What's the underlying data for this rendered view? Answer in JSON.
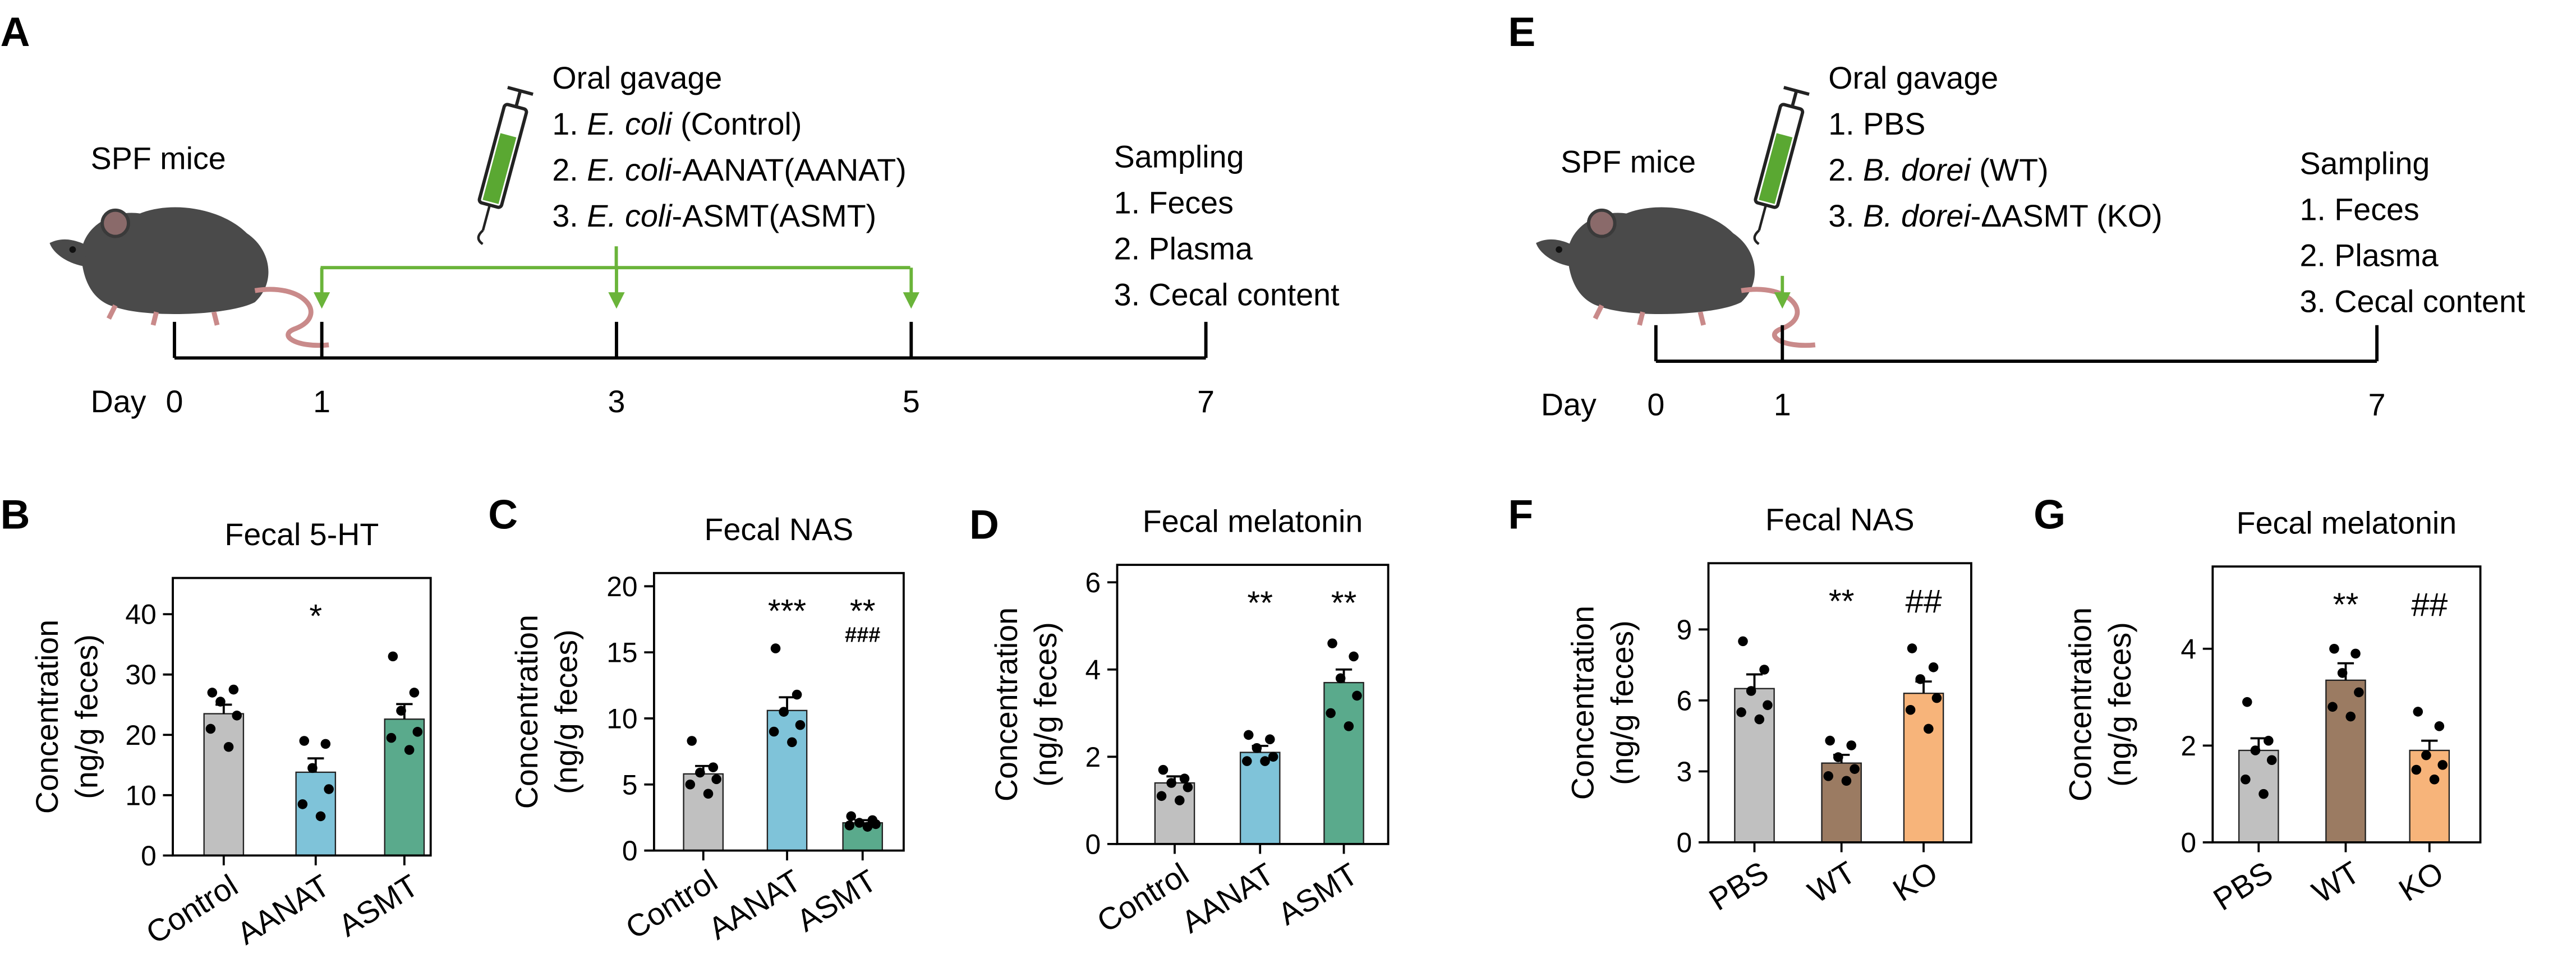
{
  "timelines": [
    {
      "letter": "A",
      "subject": "SPF mice",
      "treatment_title": "Oral gavage",
      "treatments": [
        {
          "prefix": "1. ",
          "italic": "E. coli",
          "suffix": " (Control)"
        },
        {
          "prefix": "2. ",
          "italic": "E. coli",
          "suffix": "-AANAT(AANAT)"
        },
        {
          "prefix": "3. ",
          "italic": "E. coli",
          "suffix": "-ASMT(ASMT)"
        }
      ],
      "sampling_title": "Sampling",
      "sampling": [
        "1. Feces",
        "2. Plasma",
        "3. Cecal content"
      ],
      "day_label": "Day",
      "days": [
        0,
        1,
        3,
        5,
        7
      ],
      "gavage_days": [
        1,
        3,
        5
      ]
    },
    {
      "letter": "E",
      "subject": "SPF mice",
      "treatment_title": "Oral gavage",
      "treatments": [
        {
          "prefix": "1. PBS"
        },
        {
          "prefix": "2. ",
          "italic": "B. dorei",
          "suffix": " (WT)"
        },
        {
          "prefix": "3. ",
          "italic": "B. dorei",
          "suffix": "-ΔASMT (KO)"
        }
      ],
      "sampling_title": "Sampling",
      "sampling": [
        "1. Feces",
        "2. Plasma",
        "3. Cecal content"
      ],
      "day_label": "Day",
      "days": [
        0,
        1,
        7
      ],
      "gavage_days": [
        1
      ]
    }
  ],
  "chart_data": [
    {
      "type": "bar",
      "letter": "B",
      "title": "Fecal 5-HT",
      "ylabel": [
        "Concentration",
        "(ng/g feces)"
      ],
      "categories": [
        "Control",
        "AANAT",
        "ASMT"
      ],
      "values": [
        23.5,
        13.8,
        22.6
      ],
      "errors": [
        1.5,
        2.3,
        2.5
      ],
      "colors": [
        "#c0c0c0",
        "#7fc3d9",
        "#5aaa8c"
      ],
      "points": [
        [
          27,
          27.5,
          25.5,
          23.2,
          21,
          18
        ],
        [
          19,
          18.5,
          14.5,
          11,
          8.5,
          6.5
        ],
        [
          33,
          27,
          24,
          20.5,
          19.5,
          17.5
        ]
      ],
      "annotations": [
        [],
        [
          "*"
        ],
        []
      ],
      "ylim": [
        0,
        46
      ],
      "yticks": [
        0,
        10,
        20,
        30,
        40
      ]
    },
    {
      "type": "bar",
      "letter": "C",
      "title": "Fecal NAS",
      "ylabel": [
        "Concentration",
        "(ng/g feces)"
      ],
      "categories": [
        "Control",
        "AANAT",
        "ASMT"
      ],
      "values": [
        5.8,
        10.6,
        2.1
      ],
      "errors": [
        0.6,
        1.0,
        0.2
      ],
      "colors": [
        "#c0c0c0",
        "#7fc3d9",
        "#5aaa8c"
      ],
      "points": [
        [
          8.3,
          6.3,
          5.9,
          5.4,
          5.0,
          4.3
        ],
        [
          15.3,
          11.8,
          10.5,
          9.5,
          9.0,
          8.2
        ],
        [
          2.6,
          2.3,
          2.1,
          2.0,
          1.9,
          1.8
        ]
      ],
      "annotations": [
        [],
        [
          "***"
        ],
        [
          "**",
          "###"
        ]
      ],
      "ylim": [
        0,
        21
      ],
      "yticks": [
        0,
        5,
        10,
        15,
        20
      ]
    },
    {
      "type": "bar",
      "letter": "D",
      "title": "Fecal melatonin",
      "ylabel": [
        "Concentration",
        "(ng/g feces)"
      ],
      "categories": [
        "Control",
        "AANAT",
        "ASMT"
      ],
      "values": [
        1.4,
        2.1,
        3.7
      ],
      "errors": [
        0.15,
        0.15,
        0.3
      ],
      "colors": [
        "#c0c0c0",
        "#7fc3d9",
        "#5aaa8c"
      ],
      "points": [
        [
          1.7,
          1.5,
          1.4,
          1.3,
          1.1,
          1.0
        ],
        [
          2.5,
          2.4,
          2.2,
          2.0,
          1.9,
          1.9
        ],
        [
          4.6,
          4.3,
          3.8,
          3.4,
          3.0,
          2.7
        ]
      ],
      "annotations": [
        [],
        [
          "**"
        ],
        [
          "**"
        ]
      ],
      "ylim": [
        0,
        6.4
      ],
      "yticks": [
        0,
        2,
        4,
        6
      ]
    },
    {
      "type": "bar",
      "letter": "F",
      "title": "Fecal NAS",
      "ylabel": [
        "Concentration",
        "(ng/g feces)"
      ],
      "categories": [
        "PBS",
        "WT",
        "KO"
      ],
      "values": [
        6.5,
        3.35,
        6.3
      ],
      "errors": [
        0.6,
        0.35,
        0.5
      ],
      "colors": [
        "#c0c0c0",
        "#9b7b62",
        "#f7b47a"
      ],
      "points": [
        [
          8.5,
          7.3,
          6.4,
          5.8,
          5.5,
          5.2
        ],
        [
          4.3,
          4.1,
          3.6,
          3.1,
          2.8,
          2.6
        ],
        [
          8.2,
          7.4,
          6.9,
          6.1,
          5.6,
          4.8
        ]
      ],
      "annotations": [
        [],
        [
          "**"
        ],
        [
          "##"
        ]
      ],
      "ylim": [
        0,
        11.8
      ],
      "yticks": [
        0,
        3,
        6,
        9
      ]
    },
    {
      "type": "bar",
      "letter": "G",
      "title": "Fecal melatonin",
      "ylabel": [
        "Concentration",
        "(ng/g feces)"
      ],
      "categories": [
        "PBS",
        "WT",
        "KO"
      ],
      "values": [
        1.9,
        3.35,
        1.9
      ],
      "errors": [
        0.25,
        0.35,
        0.2
      ],
      "colors": [
        "#c0c0c0",
        "#9b7b62",
        "#f7b47a"
      ],
      "points": [
        [
          2.9,
          2.1,
          1.9,
          1.7,
          1.3,
          1.0
        ],
        [
          4.0,
          3.9,
          3.5,
          3.1,
          2.8,
          2.6
        ],
        [
          2.7,
          2.4,
          1.8,
          1.6,
          1.5,
          1.3
        ]
      ],
      "annotations": [
        [],
        [
          "**"
        ],
        [
          "##"
        ]
      ],
      "ylim": [
        0,
        5.7
      ],
      "yticks": [
        0,
        2,
        4
      ]
    }
  ]
}
